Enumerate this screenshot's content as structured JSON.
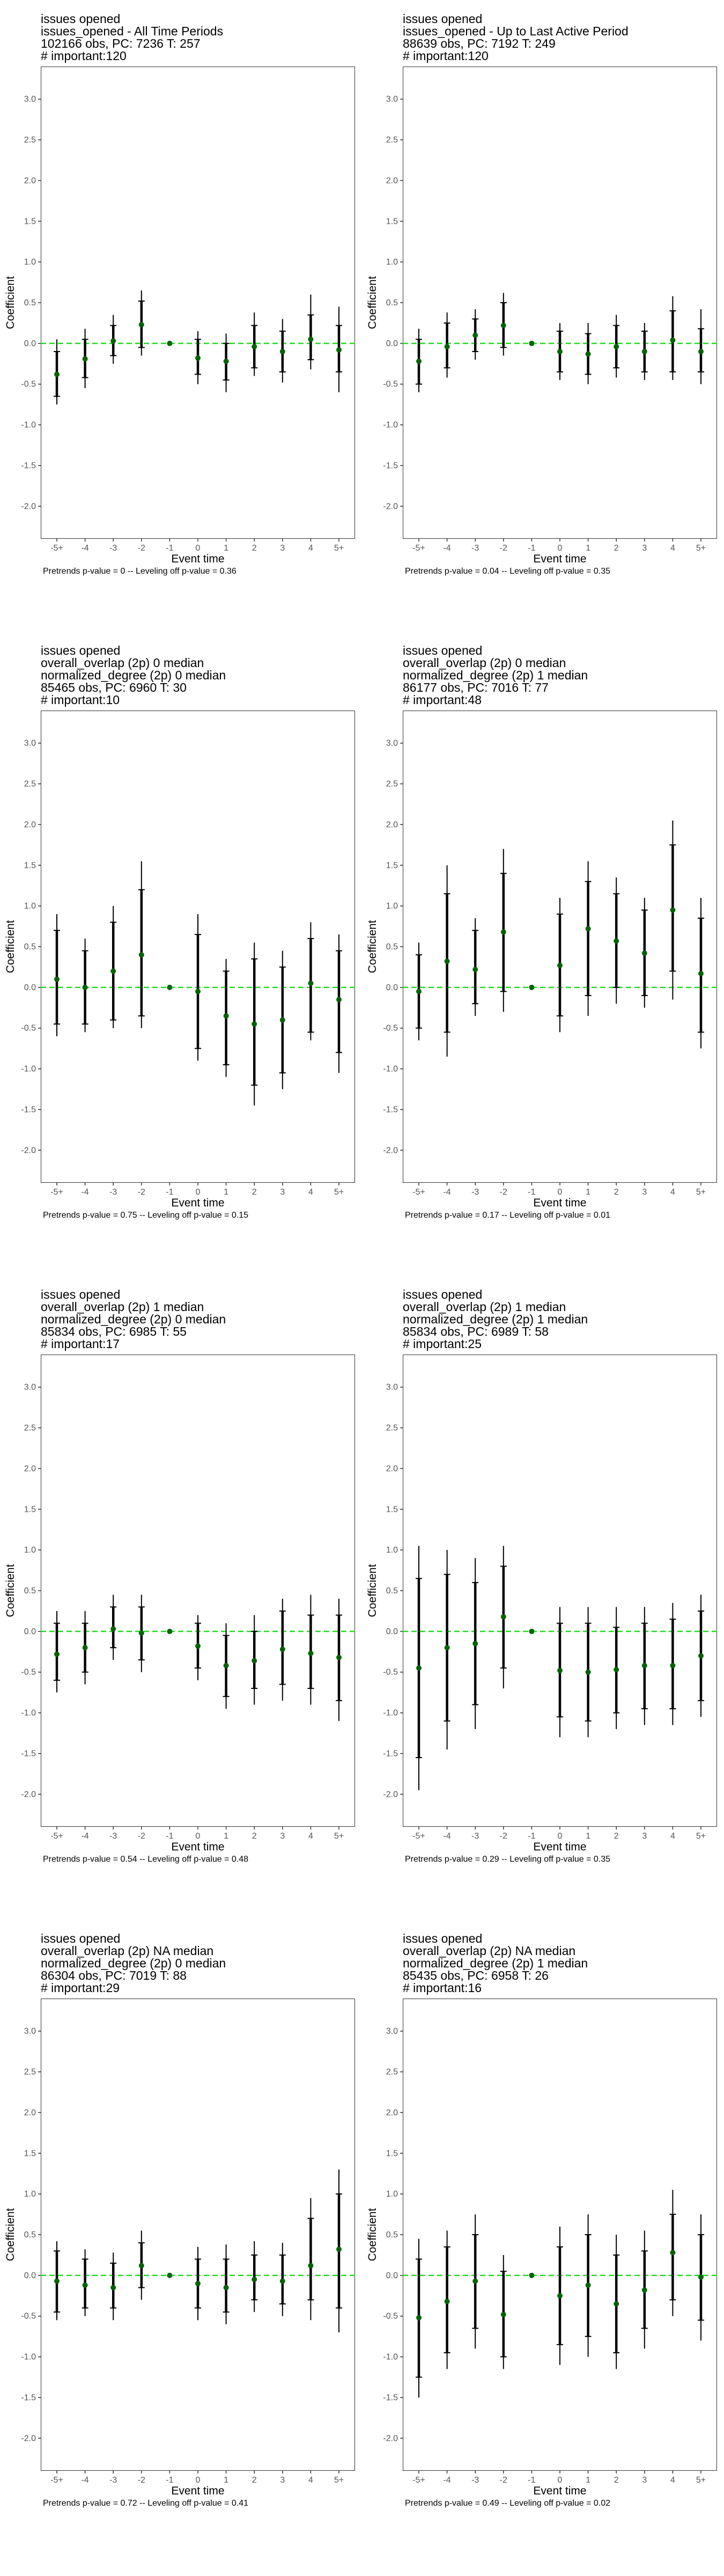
{
  "chart_data": [
    {
      "type": "scatter",
      "title_lines": [
        "issues opened",
        "issues_opened - All Time Periods",
        "102166 obs, PC: 7236 T: 257",
        "# important:120"
      ],
      "xlabel": "Event time",
      "ylabel": "Coefficient",
      "categories": [
        "-5+",
        "-4",
        "-3",
        "-2",
        "-1",
        "0",
        "1",
        "2",
        "3",
        "4",
        "5+"
      ],
      "yticks": [
        "-2.0",
        "-1.5",
        "-1.0",
        "-0.5",
        "0.0",
        "0.5",
        "1.0",
        "1.5",
        "2.0",
        "2.5",
        "3.0"
      ],
      "ylim": [
        -2.4,
        3.4
      ],
      "reference_line": 0,
      "estimates": [
        -0.38,
        -0.19,
        0.03,
        0.23,
        0.0,
        -0.18,
        -0.22,
        -0.04,
        -0.1,
        0.05,
        -0.08
      ],
      "ci_inner": [
        [
          -0.65,
          -0.1
        ],
        [
          -0.42,
          0.05
        ],
        [
          -0.15,
          0.22
        ],
        [
          -0.05,
          0.52
        ],
        [
          0,
          0
        ],
        [
          -0.38,
          0.05
        ],
        [
          -0.45,
          0.0
        ],
        [
          -0.3,
          0.22
        ],
        [
          -0.35,
          0.15
        ],
        [
          -0.2,
          0.35
        ],
        [
          -0.35,
          0.22
        ]
      ],
      "ci_outer": [
        [
          -0.75,
          0.05
        ],
        [
          -0.55,
          0.18
        ],
        [
          -0.25,
          0.35
        ],
        [
          -0.15,
          0.65
        ],
        [
          0,
          0
        ],
        [
          -0.5,
          0.15
        ],
        [
          -0.6,
          0.12
        ],
        [
          -0.4,
          0.38
        ],
        [
          -0.48,
          0.3
        ],
        [
          -0.32,
          0.6
        ],
        [
          -0.6,
          0.45
        ]
      ],
      "grid": false,
      "caption": "Pretrends p-value = 0 -- Leveling off p-value = 0.36"
    },
    {
      "type": "scatter",
      "title_lines": [
        "issues opened",
        "issues_opened - Up to Last Active Period",
        "88639 obs, PC: 7192 T: 249",
        "# important:120"
      ],
      "xlabel": "Event time",
      "ylabel": "Coefficient",
      "categories": [
        "-5+",
        "-4",
        "-3",
        "-2",
        "-1",
        "0",
        "1",
        "2",
        "3",
        "4",
        "5+"
      ],
      "yticks": [
        "-2.0",
        "-1.5",
        "-1.0",
        "-0.5",
        "0.0",
        "0.5",
        "1.0",
        "1.5",
        "2.0",
        "2.5",
        "3.0"
      ],
      "ylim": [
        -2.4,
        3.4
      ],
      "reference_line": 0,
      "estimates": [
        -0.22,
        -0.04,
        0.1,
        0.22,
        0.0,
        -0.1,
        -0.13,
        -0.04,
        -0.1,
        0.04,
        -0.1
      ],
      "ci_inner": [
        [
          -0.5,
          0.05
        ],
        [
          -0.3,
          0.25
        ],
        [
          -0.1,
          0.3
        ],
        [
          -0.05,
          0.5
        ],
        [
          0,
          0
        ],
        [
          -0.35,
          0.15
        ],
        [
          -0.38,
          0.12
        ],
        [
          -0.3,
          0.22
        ],
        [
          -0.35,
          0.15
        ],
        [
          -0.35,
          0.4
        ],
        [
          -0.35,
          0.18
        ]
      ],
      "ci_outer": [
        [
          -0.6,
          0.18
        ],
        [
          -0.42,
          0.38
        ],
        [
          -0.2,
          0.42
        ],
        [
          -0.15,
          0.62
        ],
        [
          0,
          0
        ],
        [
          -0.45,
          0.25
        ],
        [
          -0.5,
          0.25
        ],
        [
          -0.42,
          0.35
        ],
        [
          -0.45,
          0.25
        ],
        [
          -0.45,
          0.58
        ],
        [
          -0.5,
          0.42
        ]
      ],
      "grid": false,
      "caption": "Pretrends p-value = 0.04 -- Leveling off p-value = 0.35"
    },
    {
      "type": "scatter",
      "title_lines": [
        "issues opened",
        "overall_overlap (2p) 0 median",
        "normalized_degree (2p) 0 median",
        "85465 obs, PC: 6960 T: 30",
        "# important:10"
      ],
      "xlabel": "Event time",
      "ylabel": "Coefficient",
      "categories": [
        "-5+",
        "-4",
        "-3",
        "-2",
        "-1",
        "0",
        "1",
        "2",
        "3",
        "4",
        "5+"
      ],
      "yticks": [
        "-2.0",
        "-1.5",
        "-1.0",
        "-0.5",
        "0.0",
        "0.5",
        "1.0",
        "1.5",
        "2.0",
        "2.5",
        "3.0"
      ],
      "ylim": [
        -2.4,
        3.4
      ],
      "reference_line": 0,
      "estimates": [
        0.1,
        0.0,
        0.2,
        0.4,
        0.0,
        -0.05,
        -0.35,
        -0.45,
        -0.4,
        0.05,
        -0.15
      ],
      "ci_inner": [
        [
          -0.45,
          0.7
        ],
        [
          -0.45,
          0.45
        ],
        [
          -0.4,
          0.8
        ],
        [
          -0.35,
          1.2
        ],
        [
          0,
          0
        ],
        [
          -0.75,
          0.65
        ],
        [
          -0.95,
          0.2
        ],
        [
          -1.2,
          0.35
        ],
        [
          -1.05,
          0.25
        ],
        [
          -0.55,
          0.6
        ],
        [
          -0.8,
          0.45
        ]
      ],
      "ci_outer": [
        [
          -0.6,
          0.9
        ],
        [
          -0.55,
          0.6
        ],
        [
          -0.5,
          1.0
        ],
        [
          -0.5,
          1.55
        ],
        [
          0,
          0
        ],
        [
          -0.9,
          0.9
        ],
        [
          -1.1,
          0.35
        ],
        [
          -1.45,
          0.55
        ],
        [
          -1.25,
          0.45
        ],
        [
          -0.65,
          0.8
        ],
        [
          -1.05,
          0.65
        ]
      ],
      "grid": false,
      "caption": "Pretrends p-value = 0.75 -- Leveling off p-value = 0.15"
    },
    {
      "type": "scatter",
      "title_lines": [
        "issues opened",
        "overall_overlap (2p) 0 median",
        "normalized_degree (2p) 1 median",
        "86177 obs, PC: 7016 T: 77",
        "# important:48"
      ],
      "xlabel": "Event time",
      "ylabel": "Coefficient",
      "categories": [
        "-5+",
        "-4",
        "-3",
        "-2",
        "-1",
        "0",
        "1",
        "2",
        "3",
        "4",
        "5+"
      ],
      "yticks": [
        "-2.0",
        "-1.5",
        "-1.0",
        "-0.5",
        "0.0",
        "0.5",
        "1.0",
        "1.5",
        "2.0",
        "2.5",
        "3.0"
      ],
      "ylim": [
        -2.4,
        3.4
      ],
      "reference_line": 0,
      "estimates": [
        -0.05,
        0.32,
        0.22,
        0.68,
        0.0,
        0.27,
        0.72,
        0.57,
        0.42,
        0.95,
        0.17
      ],
      "ci_inner": [
        [
          -0.5,
          0.4
        ],
        [
          -0.55,
          1.15
        ],
        [
          -0.2,
          0.7
        ],
        [
          -0.05,
          1.4
        ],
        [
          0,
          0
        ],
        [
          -0.35,
          0.9
        ],
        [
          -0.1,
          1.3
        ],
        [
          0.0,
          1.15
        ],
        [
          -0.1,
          0.95
        ],
        [
          0.2,
          1.75
        ],
        [
          -0.55,
          0.85
        ]
      ],
      "ci_outer": [
        [
          -0.65,
          0.55
        ],
        [
          -0.85,
          1.5
        ],
        [
          -0.35,
          0.85
        ],
        [
          -0.3,
          1.7
        ],
        [
          0,
          0
        ],
        [
          -0.55,
          1.1
        ],
        [
          -0.35,
          1.55
        ],
        [
          -0.2,
          1.35
        ],
        [
          -0.25,
          1.1
        ],
        [
          -0.15,
          2.05
        ],
        [
          -0.75,
          1.1
        ]
      ],
      "grid": false,
      "caption": "Pretrends p-value = 0.17 -- Leveling off p-value = 0.01"
    },
    {
      "type": "scatter",
      "title_lines": [
        "issues opened",
        "overall_overlap (2p) 1 median",
        "normalized_degree (2p) 0 median",
        "85834 obs, PC: 6985 T: 55",
        "# important:17"
      ],
      "xlabel": "Event time",
      "ylabel": "Coefficient",
      "categories": [
        "-5+",
        "-4",
        "-3",
        "-2",
        "-1",
        "0",
        "1",
        "2",
        "3",
        "4",
        "5+"
      ],
      "yticks": [
        "-2.0",
        "-1.5",
        "-1.0",
        "-0.5",
        "0.0",
        "0.5",
        "1.0",
        "1.5",
        "2.0",
        "2.5",
        "3.0"
      ],
      "ylim": [
        -2.4,
        3.4
      ],
      "reference_line": 0,
      "estimates": [
        -0.28,
        -0.2,
        0.03,
        -0.02,
        0.0,
        -0.18,
        -0.42,
        -0.36,
        -0.22,
        -0.27,
        -0.32
      ],
      "ci_inner": [
        [
          -0.6,
          0.1
        ],
        [
          -0.5,
          0.1
        ],
        [
          -0.2,
          0.3
        ],
        [
          -0.35,
          0.3
        ],
        [
          0,
          0
        ],
        [
          -0.45,
          0.1
        ],
        [
          -0.8,
          -0.05
        ],
        [
          -0.7,
          0.0
        ],
        [
          -0.65,
          0.25
        ],
        [
          -0.7,
          0.2
        ],
        [
          -0.85,
          0.2
        ]
      ],
      "ci_outer": [
        [
          -0.75,
          0.25
        ],
        [
          -0.65,
          0.25
        ],
        [
          -0.35,
          0.45
        ],
        [
          -0.5,
          0.45
        ],
        [
          0,
          0
        ],
        [
          -0.6,
          0.2
        ],
        [
          -0.95,
          0.1
        ],
        [
          -0.9,
          0.2
        ],
        [
          -0.85,
          0.4
        ],
        [
          -0.9,
          0.45
        ],
        [
          -1.1,
          0.4
        ]
      ],
      "grid": false,
      "caption": "Pretrends p-value = 0.54 -- Leveling off p-value = 0.48"
    },
    {
      "type": "scatter",
      "title_lines": [
        "issues opened",
        "overall_overlap (2p) 1 median",
        "normalized_degree (2p) 1 median",
        "85834 obs, PC: 6989 T: 58",
        "# important:25"
      ],
      "xlabel": "Event time",
      "ylabel": "Coefficient",
      "categories": [
        "-5+",
        "-4",
        "-3",
        "-2",
        "-1",
        "0",
        "1",
        "2",
        "3",
        "4",
        "5+"
      ],
      "yticks": [
        "-2.0",
        "-1.5",
        "-1.0",
        "-0.5",
        "0.0",
        "0.5",
        "1.0",
        "1.5",
        "2.0",
        "2.5",
        "3.0"
      ],
      "ylim": [
        -2.4,
        3.4
      ],
      "reference_line": 0,
      "estimates": [
        -0.45,
        -0.2,
        -0.15,
        0.18,
        0.0,
        -0.48,
        -0.5,
        -0.47,
        -0.42,
        -0.42,
        -0.3
      ],
      "ci_inner": [
        [
          -1.55,
          0.65
        ],
        [
          -1.1,
          0.7
        ],
        [
          -0.9,
          0.6
        ],
        [
          -0.45,
          0.8
        ],
        [
          0,
          0
        ],
        [
          -1.05,
          0.1
        ],
        [
          -1.1,
          0.1
        ],
        [
          -1.0,
          0.05
        ],
        [
          -0.95,
          0.1
        ],
        [
          -0.95,
          0.15
        ],
        [
          -0.85,
          0.25
        ]
      ],
      "ci_outer": [
        [
          -1.95,
          1.05
        ],
        [
          -1.45,
          1.0
        ],
        [
          -1.2,
          0.9
        ],
        [
          -0.7,
          1.05
        ],
        [
          0,
          0
        ],
        [
          -1.3,
          0.3
        ],
        [
          -1.3,
          0.3
        ],
        [
          -1.2,
          0.3
        ],
        [
          -1.15,
          0.3
        ],
        [
          -1.15,
          0.35
        ],
        [
          -1.05,
          0.45
        ]
      ],
      "grid": false,
      "caption": "Pretrends p-value = 0.29 -- Leveling off p-value = 0.35"
    },
    {
      "type": "scatter",
      "title_lines": [
        "issues opened",
        "overall_overlap (2p) NA median",
        "normalized_degree (2p) 0 median",
        "86304 obs, PC: 7019 T: 88",
        "# important:29"
      ],
      "xlabel": "Event time",
      "ylabel": "Coefficient",
      "categories": [
        "-5+",
        "-4",
        "-3",
        "-2",
        "-1",
        "0",
        "1",
        "2",
        "3",
        "4",
        "5+"
      ],
      "yticks": [
        "-2.0",
        "-1.5",
        "-1.0",
        "-0.5",
        "0.0",
        "0.5",
        "1.0",
        "1.5",
        "2.0",
        "2.5",
        "3.0"
      ],
      "ylim": [
        -2.4,
        3.4
      ],
      "reference_line": 0,
      "estimates": [
        -0.07,
        -0.12,
        -0.15,
        0.12,
        0.0,
        -0.1,
        -0.15,
        -0.05,
        -0.07,
        0.12,
        0.32
      ],
      "ci_inner": [
        [
          -0.45,
          0.3
        ],
        [
          -0.4,
          0.2
        ],
        [
          -0.4,
          0.15
        ],
        [
          -0.15,
          0.4
        ],
        [
          0,
          0
        ],
        [
          -0.4,
          0.2
        ],
        [
          -0.45,
          0.2
        ],
        [
          -0.3,
          0.25
        ],
        [
          -0.35,
          0.25
        ],
        [
          -0.3,
          0.7
        ],
        [
          -0.4,
          1.0
        ]
      ],
      "ci_outer": [
        [
          -0.55,
          0.42
        ],
        [
          -0.5,
          0.32
        ],
        [
          -0.55,
          0.28
        ],
        [
          -0.3,
          0.55
        ],
        [
          0,
          0
        ],
        [
          -0.55,
          0.35
        ],
        [
          -0.6,
          0.38
        ],
        [
          -0.45,
          0.42
        ],
        [
          -0.5,
          0.4
        ],
        [
          -0.55,
          0.95
        ],
        [
          -0.7,
          1.3
        ]
      ],
      "grid": false,
      "caption": "Pretrends p-value = 0.72 -- Leveling off p-value = 0.41"
    },
    {
      "type": "scatter",
      "title_lines": [
        "issues opened",
        "overall_overlap (2p) NA median",
        "normalized_degree (2p) 1 median",
        "85435 obs, PC: 6958 T: 26",
        "# important:16"
      ],
      "xlabel": "Event time",
      "ylabel": "Coefficient",
      "categories": [
        "-5+",
        "-4",
        "-3",
        "-2",
        "-1",
        "0",
        "1",
        "2",
        "3",
        "4",
        "5+"
      ],
      "yticks": [
        "-2.0",
        "-1.5",
        "-1.0",
        "-0.5",
        "0.0",
        "0.5",
        "1.0",
        "1.5",
        "2.0",
        "2.5",
        "3.0"
      ],
      "ylim": [
        -2.4,
        3.4
      ],
      "reference_line": 0,
      "estimates": [
        -0.52,
        -0.32,
        -0.07,
        -0.48,
        0.0,
        -0.25,
        -0.12,
        -0.35,
        -0.18,
        0.28,
        -0.02
      ],
      "ci_inner": [
        [
          -1.25,
          0.2
        ],
        [
          -0.95,
          0.35
        ],
        [
          -0.65,
          0.5
        ],
        [
          -1.0,
          0.05
        ],
        [
          0,
          0
        ],
        [
          -0.85,
          0.35
        ],
        [
          -0.75,
          0.5
        ],
        [
          -0.95,
          0.25
        ],
        [
          -0.65,
          0.3
        ],
        [
          -0.3,
          0.75
        ],
        [
          -0.55,
          0.5
        ]
      ],
      "ci_outer": [
        [
          -1.5,
          0.45
        ],
        [
          -1.15,
          0.55
        ],
        [
          -0.9,
          0.75
        ],
        [
          -1.15,
          0.25
        ],
        [
          0,
          0
        ],
        [
          -1.1,
          0.6
        ],
        [
          -1.0,
          0.75
        ],
        [
          -1.15,
          0.5
        ],
        [
          -0.9,
          0.55
        ],
        [
          -0.5,
          1.05
        ],
        [
          -0.8,
          0.75
        ]
      ],
      "grid": false,
      "caption": "Pretrends p-value = 0.49 -- Leveling off p-value = 0.02"
    }
  ],
  "colors": {
    "point": "#006400",
    "reference_line": "#22dd22",
    "bar": "#000000",
    "frame": "#333333"
  }
}
